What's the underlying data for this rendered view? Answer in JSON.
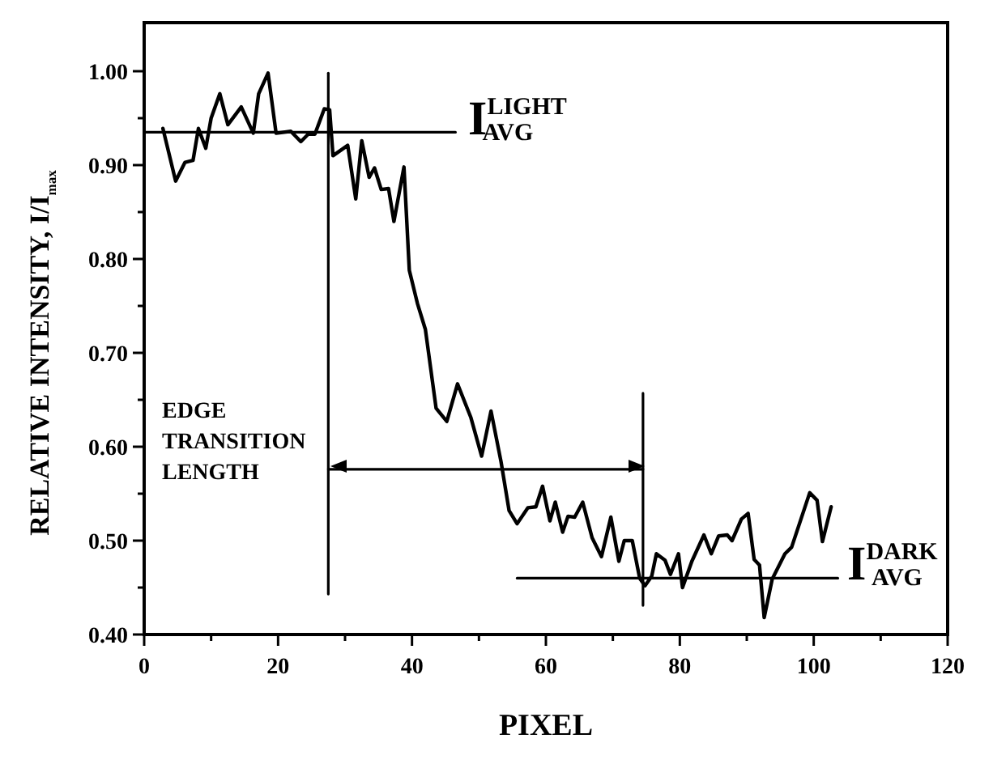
{
  "chart_data": {
    "type": "line",
    "xlabel": "PIXEL",
    "ylabel": "RELATIVE INTENSITY, I/I$_{max}$",
    "xlim": [
      0,
      120
    ],
    "ylim": [
      0.4,
      1.0
    ],
    "xticks": [
      0,
      {
        "value": 10,
        "label": null
      },
      20,
      {
        "value": 30,
        "label": null
      },
      40,
      {
        "value": 50,
        "label": null
      },
      60,
      {
        "value": 70,
        "label": null
      },
      80,
      {
        "value": 90,
        "label": null
      },
      100,
      {
        "value": 110,
        "label": null
      },
      120
    ],
    "yticks": [
      {
        "value": 0.4,
        "label": "0.40"
      },
      {
        "value": 0.45,
        "label": null
      },
      {
        "value": 0.5,
        "label": "0.50"
      },
      {
        "value": 0.55,
        "label": null
      },
      {
        "value": 0.6,
        "label": "0.60"
      },
      {
        "value": 0.65,
        "label": null
      },
      {
        "value": 0.7,
        "label": "0.70"
      },
      {
        "value": 0.75,
        "label": null
      },
      {
        "value": 0.8,
        "label": "0.80"
      },
      {
        "value": 0.85,
        "label": null
      },
      {
        "value": 0.9,
        "label": "0.90"
      },
      {
        "value": 0.95,
        "label": null
      },
      {
        "value": 1.0,
        "label": "1.00"
      }
    ],
    "series": [
      {
        "color": "#000000",
        "x": [
          2.8,
          4.7,
          6.1,
          7.3,
          8.1,
          9.2,
          10,
          11.3,
          12.5,
          14.5,
          16.3,
          17.1,
          18.5,
          19.7,
          21.9,
          23.4,
          24.5,
          25.5,
          26.9,
          27.7,
          28.2,
          30.4,
          31.6,
          32.5,
          33.6,
          34.4,
          35.4,
          36.5,
          37.3,
          38.8,
          39.6,
          40.8,
          42,
          43.6,
          45.2,
          46.8,
          48.8,
          50.4,
          51.8,
          53.3,
          54.5,
          55.7,
          57.3,
          58.5,
          59.5,
          60.6,
          61.4,
          62.5,
          63.3,
          64.3,
          65.5,
          66.9,
          68.3,
          69.7,
          70.9,
          71.7,
          72.9,
          74,
          74.8,
          75.8,
          76.5,
          77.8,
          78.6,
          79.8,
          80.4,
          81.8,
          83.6,
          84.7,
          85.8,
          87.1,
          87.8,
          89.2,
          90.2,
          91.1,
          91.9,
          92.6,
          93.8,
          95.7,
          96.7,
          99.4,
          100.5,
          101.3,
          102.6
        ],
        "values": [
          0.939,
          0.883,
          0.903,
          0.905,
          0.939,
          0.918,
          0.95,
          0.976,
          0.943,
          0.962,
          0.934,
          0.976,
          0.998,
          0.934,
          0.936,
          0.925,
          0.933,
          0.933,
          0.96,
          0.959,
          0.91,
          0.921,
          0.864,
          0.926,
          0.887,
          0.897,
          0.874,
          0.875,
          0.84,
          0.898,
          0.788,
          0.753,
          0.725,
          0.641,
          0.627,
          0.667,
          0.631,
          0.59,
          0.638,
          0.584,
          0.532,
          0.518,
          0.535,
          0.536,
          0.558,
          0.521,
          0.541,
          0.509,
          0.526,
          0.525,
          0.541,
          0.503,
          0.483,
          0.525,
          0.478,
          0.5,
          0.5,
          0.46,
          0.452,
          0.462,
          0.486,
          0.479,
          0.464,
          0.486,
          0.45,
          0.478,
          0.506,
          0.486,
          0.505,
          0.506,
          0.5,
          0.523,
          0.529,
          0.48,
          0.474,
          0.418,
          0.459,
          0.486,
          0.493,
          0.551,
          0.543,
          0.499,
          0.536
        ]
      },
      {
        "color": "#000000",
        "x": [
          0,
          46.5
        ],
        "values": [
          0.935,
          0.935
        ]
      },
      {
        "color": "#000000",
        "x": [
          55.7,
          103.6
        ],
        "values": [
          0.46,
          0.46
        ]
      },
      {
        "color": "#000000",
        "x": [
          27.5,
          27.5
        ],
        "values": [
          0.443,
          0.998
        ]
      },
      {
        "color": "#000000",
        "x": [
          74.5,
          74.5
        ],
        "values": [
          0.431,
          0.657
        ]
      },
      {
        "color": "#000000",
        "x": [
          27.5,
          74.5
        ],
        "values": [
          0.576,
          0.576
        ]
      }
    ],
    "annotations": [
      "EDGE TRANSITION LENGTH",
      "I$^{LIGHT}$$_{AVG}$",
      "I$^{DARK}$$_{AVG}$"
    ]
  }
}
